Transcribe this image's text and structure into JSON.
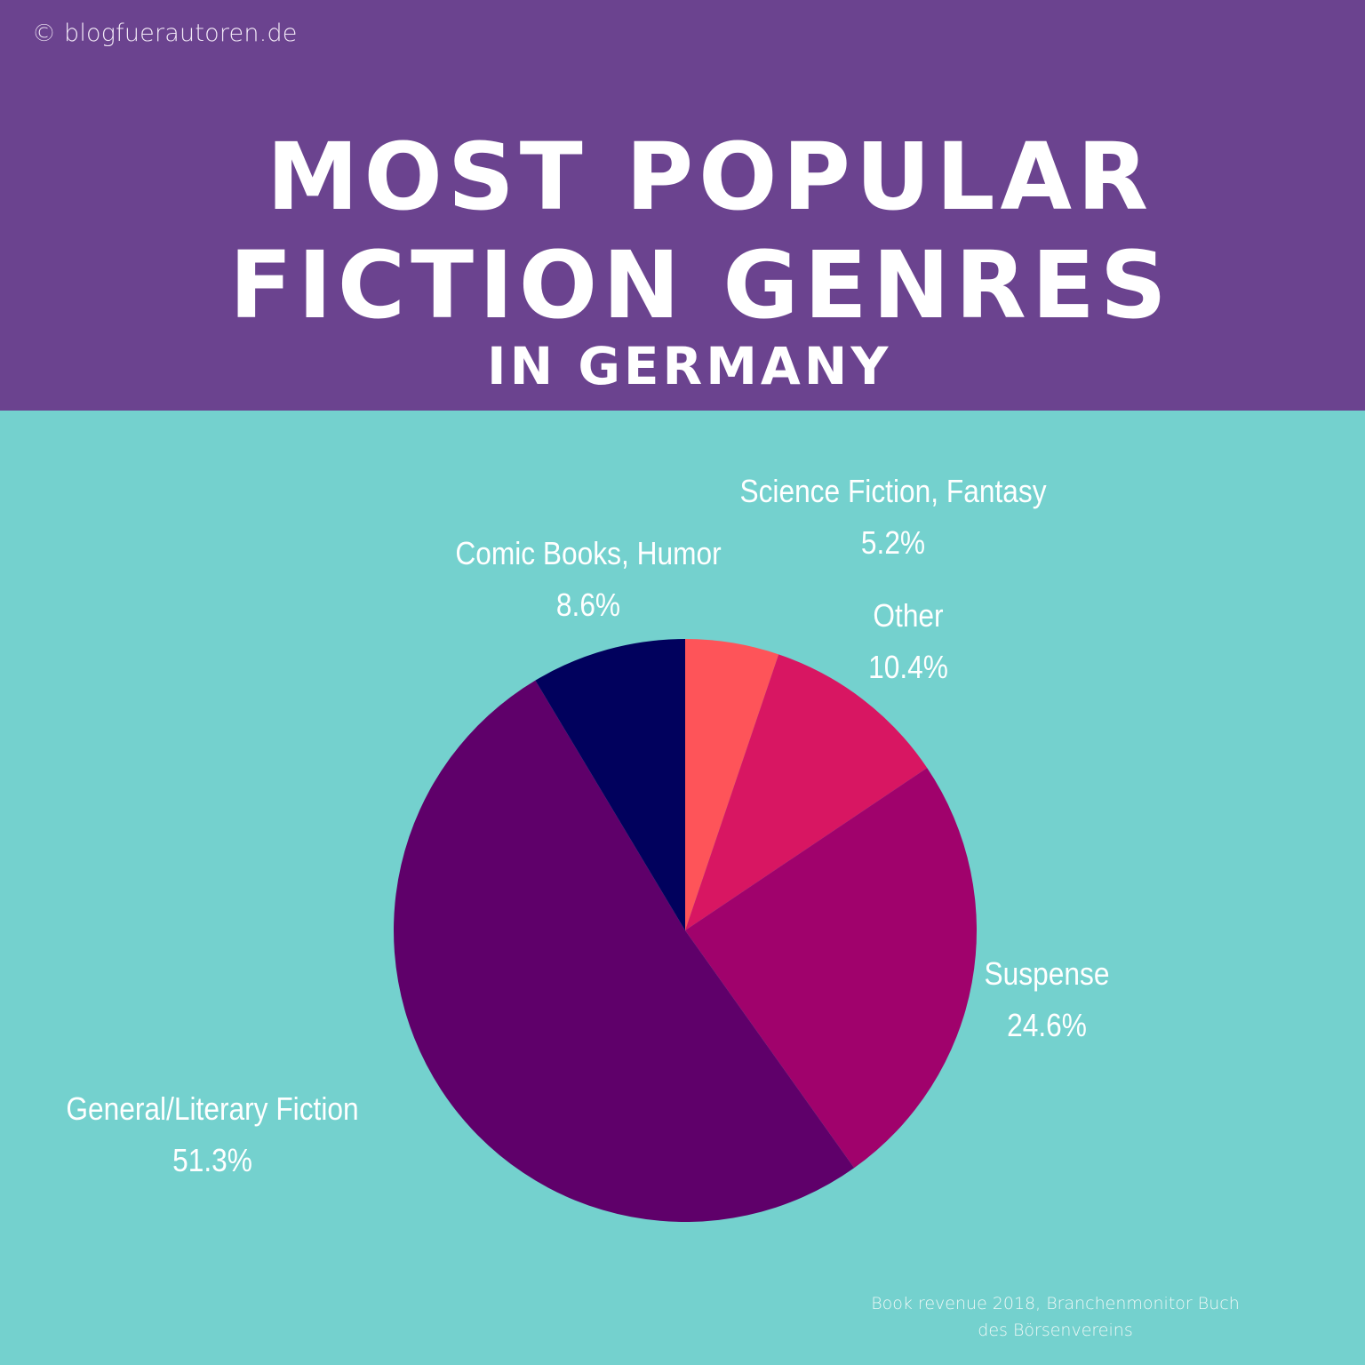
{
  "header": {
    "copyright": "© blogfuerautoren.de",
    "title_line1": "Most Popular",
    "title_line2": "Fiction Genres",
    "title_line3": "in Germany",
    "background": "#6b438f"
  },
  "footer": {
    "source_line1": "Book revenue 2018, Branchenmonitor Buch",
    "source_line2": "des Börsenvereins"
  },
  "labels": {
    "scifi": {
      "name": "Science Fiction, Fantasy",
      "value": "5.2%"
    },
    "other": {
      "name": "Other",
      "value": "10.4%"
    },
    "suspense": {
      "name": "Suspense",
      "value": "24.6%"
    },
    "general": {
      "name": "General/Literary Fiction",
      "value": "51.3%"
    },
    "comic": {
      "name": "Comic Books, Humor",
      "value": "8.6%"
    }
  },
  "colors": {
    "background": "#74d1ce",
    "scifi": "#fe5459",
    "other": "#d81662",
    "suspense": "#a0026c",
    "general": "#5f006a",
    "comic": "#01015d"
  },
  "chart_data": {
    "type": "pie",
    "title": "Most Popular Fiction Genres in Germany",
    "subtitle": "Book revenue 2018, Branchenmonitor Buch des Börsenvereins",
    "categories": [
      "Science Fiction, Fantasy",
      "Other",
      "Suspense",
      "General/Literary Fiction",
      "Comic Books, Humor"
    ],
    "values": [
      5.2,
      10.4,
      24.6,
      51.3,
      8.6
    ],
    "unit": "%",
    "start_angle": "12 o'clock",
    "direction": "clockwise",
    "colors": [
      "#fe5459",
      "#d81662",
      "#a0026c",
      "#5f006a",
      "#01015d"
    ],
    "legend": "none (direct labels)"
  }
}
